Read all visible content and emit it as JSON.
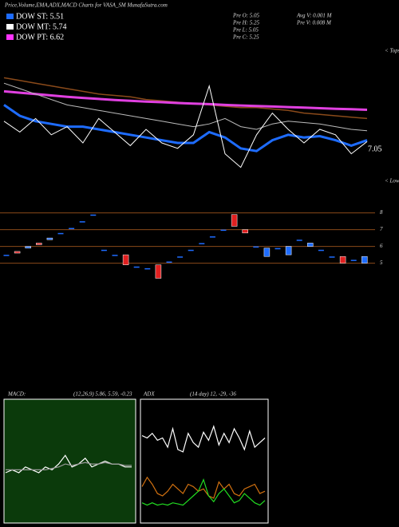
{
  "header": {
    "title": "Price,Volume,EMA,ADX,MACD Charts for VASA_SM MunafaSutra.com",
    "legend": [
      {
        "label": "DOW ST: 5.51",
        "color": "#1e6cff"
      },
      {
        "label": "DOW MT: 5.74",
        "color": "#ffffff"
      },
      {
        "label": "DOW PT: 6.62",
        "color": "#ff33ff"
      }
    ],
    "info_left": [
      "Pre  O: 5.05",
      "Pre  H: 5.25",
      "Pre  L: 5.05",
      "Pre  C: 5.25"
    ],
    "info_right": [
      "Avg V: 0.001 M",
      "Pre  V: 0.008 M"
    ],
    "tops": "< Tops",
    "lows": "< Lows"
  },
  "chart_data": [
    {
      "type": "line",
      "ylim": [
        5.5,
        10.5
      ],
      "last_label": "7.05",
      "series": [
        {
          "name": "EMA long",
          "color": "#8a4a1a",
          "width": 1.5,
          "values": [
            9.4,
            9.3,
            9.2,
            9.1,
            9.0,
            8.9,
            8.8,
            8.75,
            8.7,
            8.6,
            8.55,
            8.5,
            8.45,
            8.4,
            8.35,
            8.3,
            8.3,
            8.25,
            8.2,
            8.1,
            8.05,
            8.0,
            7.95,
            7.9
          ]
        },
        {
          "name": "EMA 200",
          "color": "#e040e0",
          "width": 3,
          "values": [
            8.9,
            8.85,
            8.8,
            8.75,
            8.7,
            8.66,
            8.62,
            8.58,
            8.55,
            8.52,
            8.5,
            8.47,
            8.45,
            8.43,
            8.4,
            8.38,
            8.36,
            8.34,
            8.32,
            8.3,
            8.28,
            8.26,
            8.24,
            8.22
          ]
        },
        {
          "name": "EMA mid",
          "color": "#bbbbbb",
          "width": 1,
          "values": [
            9.2,
            9.0,
            8.8,
            8.6,
            8.4,
            8.3,
            8.2,
            8.1,
            8.0,
            7.9,
            7.8,
            7.7,
            7.6,
            7.7,
            7.9,
            7.6,
            7.5,
            7.7,
            7.8,
            7.75,
            7.7,
            7.6,
            7.5,
            7.45
          ]
        },
        {
          "name": "EMA short",
          "color": "#1e6cff",
          "width": 3,
          "values": [
            8.4,
            8.0,
            7.8,
            7.7,
            7.6,
            7.6,
            7.5,
            7.4,
            7.3,
            7.2,
            7.1,
            7.0,
            7.0,
            7.4,
            7.2,
            6.8,
            6.7,
            7.1,
            7.3,
            7.2,
            7.25,
            7.1,
            6.9,
            7.1
          ]
        },
        {
          "name": "Price",
          "color": "#ffffff",
          "width": 1,
          "values": [
            7.8,
            7.4,
            7.9,
            7.3,
            7.6,
            7.0,
            7.9,
            7.4,
            6.9,
            7.5,
            7.0,
            6.8,
            7.3,
            9.1,
            6.6,
            6.1,
            7.3,
            8.1,
            7.5,
            7.0,
            7.5,
            7.3,
            6.6,
            7.05
          ]
        }
      ]
    },
    {
      "type": "candlestick",
      "ylim": [
        4.6,
        8.6
      ],
      "yticks": [
        8,
        7,
        6,
        5
      ],
      "up_color": "#1e6cff",
      "down_color": "#e02020",
      "open": [
        5.5,
        5.7,
        5.9,
        6.2,
        6.4,
        6.8,
        7.1,
        7.5,
        7.9,
        5.8,
        5.5,
        5.5,
        4.8,
        4.7,
        4.9,
        5.1,
        5.4,
        5.8,
        6.2,
        6.6,
        7.0,
        7.9,
        7.0,
        6.0,
        5.4,
        5.9,
        5.5,
        6.4,
        6.0,
        5.8,
        5.4,
        5.4,
        5.2,
        5.0
      ],
      "close": [
        5.5,
        5.6,
        6.0,
        6.1,
        6.5,
        6.8,
        7.1,
        7.5,
        7.9,
        5.8,
        5.5,
        4.9,
        4.8,
        4.7,
        4.1,
        5.1,
        5.4,
        5.8,
        6.2,
        6.6,
        7.0,
        7.2,
        6.8,
        6.0,
        5.9,
        5.9,
        6.0,
        6.4,
        6.2,
        5.8,
        5.4,
        5.0,
        5.2,
        5.4
      ]
    },
    {
      "type": "line",
      "label": "MACD:",
      "params": "(12,26,9) 5.86, 5.59, -0.23",
      "ylim": [
        4,
        8
      ],
      "background": "#0b3a0b",
      "series": [
        {
          "name": "MACD",
          "color": "#ffffff",
          "values": [
            5.6,
            5.7,
            5.6,
            5.8,
            5.7,
            5.6,
            5.8,
            5.7,
            5.9,
            6.2,
            5.8,
            5.9,
            6.1,
            5.8,
            5.9,
            6.0,
            5.9,
            5.9,
            5.8,
            5.8
          ]
        },
        {
          "name": "Signal",
          "color": "#999999",
          "values": [
            5.7,
            5.7,
            5.7,
            5.7,
            5.7,
            5.7,
            5.7,
            5.75,
            5.8,
            5.9,
            5.85,
            5.9,
            5.95,
            5.9,
            5.9,
            5.95,
            5.9,
            5.9,
            5.85,
            5.85
          ]
        }
      ]
    },
    {
      "type": "line",
      "label": "ADX",
      "params": "(14 day) 12, -29, -36",
      "ylim": [
        0,
        100
      ],
      "background": "#000000",
      "series": [
        {
          "name": "+DI",
          "color": "#ffffff",
          "values": [
            72,
            70,
            74,
            68,
            70,
            62,
            78,
            60,
            58,
            74,
            66,
            62,
            75,
            68,
            80,
            64,
            74,
            66,
            78,
            70,
            60,
            76,
            62,
            66,
            70
          ]
        },
        {
          "name": "-DI",
          "color": "#d07010",
          "values": [
            28,
            36,
            30,
            22,
            20,
            24,
            30,
            26,
            22,
            30,
            28,
            24,
            26,
            20,
            18,
            32,
            26,
            30,
            22,
            20,
            26,
            28,
            30,
            22,
            24
          ]
        },
        {
          "name": "ADX",
          "color": "#22dd22",
          "values": [
            14,
            12,
            14,
            12,
            13,
            12,
            14,
            13,
            12,
            16,
            20,
            24,
            34,
            20,
            15,
            22,
            26,
            20,
            14,
            16,
            22,
            18,
            14,
            12,
            16
          ]
        }
      ]
    }
  ]
}
